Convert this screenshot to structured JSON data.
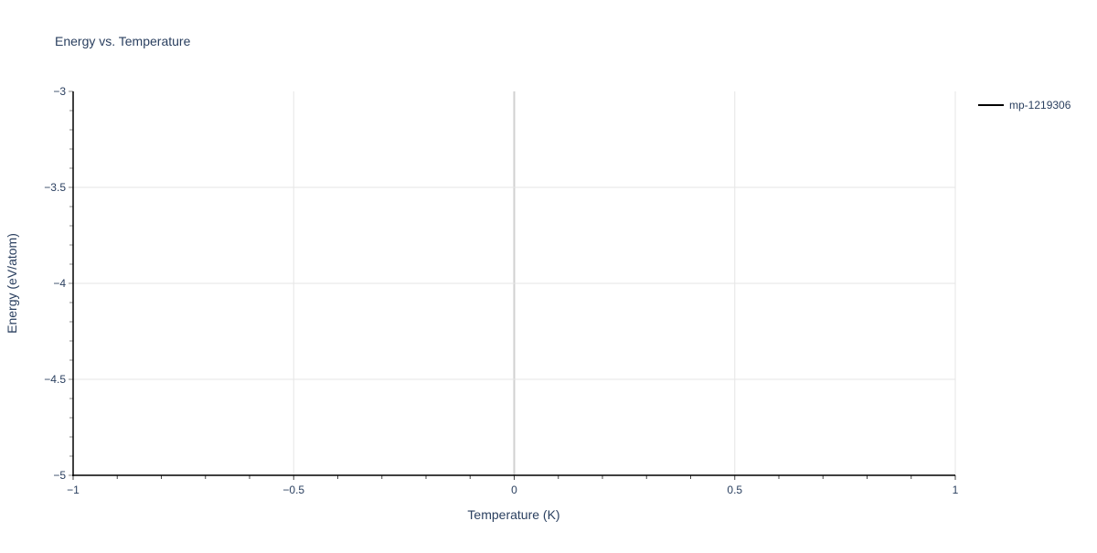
{
  "chart_data": {
    "type": "line",
    "title": "Energy vs. Temperature",
    "xlabel": "Temperature (K)",
    "ylabel": "Energy (eV/atom)",
    "xlim": [
      -1,
      1
    ],
    "ylim": [
      -5,
      -3
    ],
    "x_ticks": [
      -1,
      -0.5,
      0,
      0.5,
      1
    ],
    "x_tick_labels": [
      "−1",
      "−0.5",
      "0",
      "0.5",
      "1"
    ],
    "y_ticks": [
      -3,
      -3.5,
      -4,
      -4.5,
      -5
    ],
    "y_tick_labels": [
      "−3",
      "−3.5",
      "−4",
      "−4.5",
      "−5"
    ],
    "grid": true,
    "legend_position": "top-right",
    "series": [
      {
        "name": "mp-1219306",
        "color": "#000000",
        "x": [],
        "y": []
      }
    ]
  }
}
